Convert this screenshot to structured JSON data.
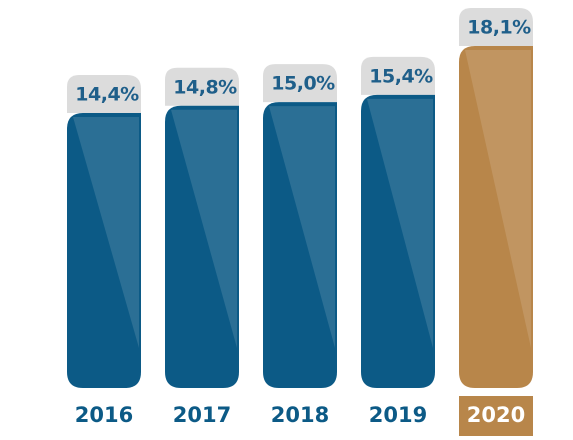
{
  "chart_data": {
    "type": "bar",
    "categories": [
      "2016",
      "2017",
      "2018",
      "2019",
      "2020"
    ],
    "values": [
      14.4,
      14.8,
      15.0,
      15.4,
      18.1
    ],
    "value_labels": [
      "14,4%",
      "14,8%",
      "15,0%",
      "15,4%",
      "18,1%"
    ],
    "colors": [
      "#0c5a86",
      "#0c5a86",
      "#0c5a86",
      "#0c5a86",
      "#b8864a"
    ]
  }
}
